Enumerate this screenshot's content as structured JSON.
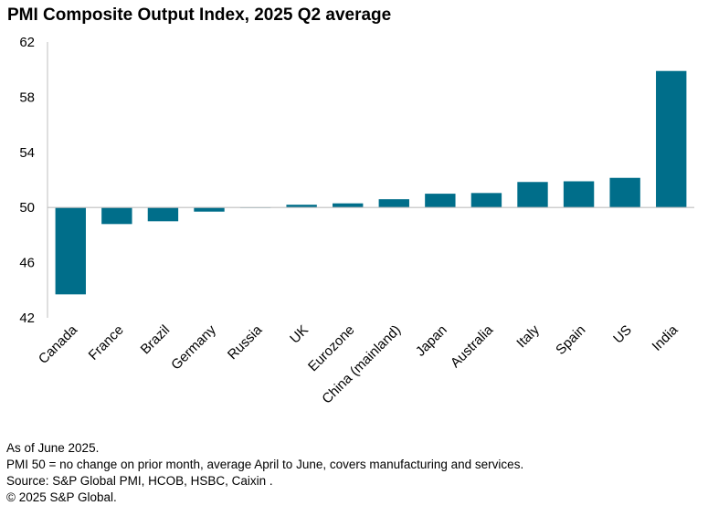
{
  "chart_data": {
    "type": "bar",
    "title": "PMI Composite Output Index, 2025 Q2 average",
    "xlabel": "",
    "ylabel": "",
    "ylim": [
      42,
      62
    ],
    "yticks": [
      42,
      46,
      50,
      54,
      58,
      62
    ],
    "baseline": 50,
    "categories": [
      "Canada",
      "France",
      "Brazil",
      "Germany",
      "Russia",
      "UK",
      "Eurozone",
      "China (mainland)",
      "Japan",
      "Australia",
      "Italy",
      "Spain",
      "US",
      "India"
    ],
    "values": [
      43.7,
      48.8,
      49.0,
      49.7,
      50.0,
      50.2,
      50.3,
      50.6,
      51.0,
      51.05,
      51.85,
      51.9,
      52.15,
      59.9
    ],
    "bar_color": "#006e8a",
    "grid": false,
    "legend": "none"
  },
  "footnotes": {
    "line1": "As of June 2025.",
    "line2": "PMI 50 = no change on prior month, average April to June, covers manufacturing and services.",
    "line3": "Source: S&P Global PMI, HCOB, HSBC, Caixin .",
    "line4": "© 2025 S&P Global."
  }
}
